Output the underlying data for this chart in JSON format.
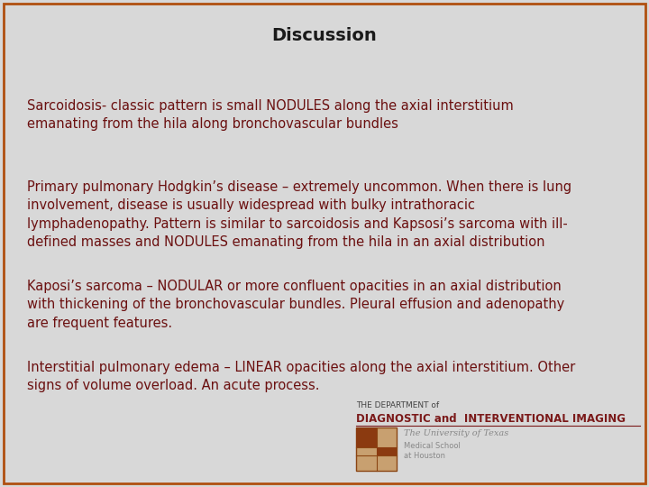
{
  "title": "Discussion",
  "title_color": "#1a1a1a",
  "title_fontsize": 14,
  "background_color": "#d8d8d8",
  "border_color": "#b05010",
  "text_color": "#6B1010",
  "text_fontsize": 10.5,
  "paragraphs": [
    "Sarcoidosis- classic pattern is small NODULES along the axial interstitium\nemanating from the hila along bronchovascular bundles",
    "Primary pulmonary Hodgkin’s disease – extremely uncommon. When there is lung\ninvolvement, disease is usually widespread with bulky intrathoracic\nlymphadenopathy. Pattern is similar to sarcoidosis and Kapsosi’s sarcoma with ill-\ndefined masses and NODULES emanating from the hila in an axial distribution",
    "Kaposi’s sarcoma – NODULAR or more confluent opacities in an axial distribution\nwith thickening of the bronchovascular bundles. Pleural effusion and adenopathy\nare frequent features.",
    "Interstitial pulmonary edema – LINEAR opacities along the axial interstitium. Other\nsigns of volume overload. An acute process."
  ],
  "logo_text_line1": "THE DEPARTMENT of",
  "logo_text_line2": "DIAGNOSTIC and  INTERVENTIONAL IMAGING",
  "logo_text_line3": "The University of Texas",
  "logo_text_line4": "Medical School",
  "logo_text_line5": "at Houston",
  "logo_color_dark": "#444444",
  "logo_color_main": "#7B1A1A",
  "logo_color_light": "#888888",
  "logo_fontsize_line1": 6.5,
  "logo_fontsize_line2": 8.5,
  "logo_fontsize_line3": 7,
  "logo_fontsize_line4": 6,
  "logo_fontsize_line5": 6
}
